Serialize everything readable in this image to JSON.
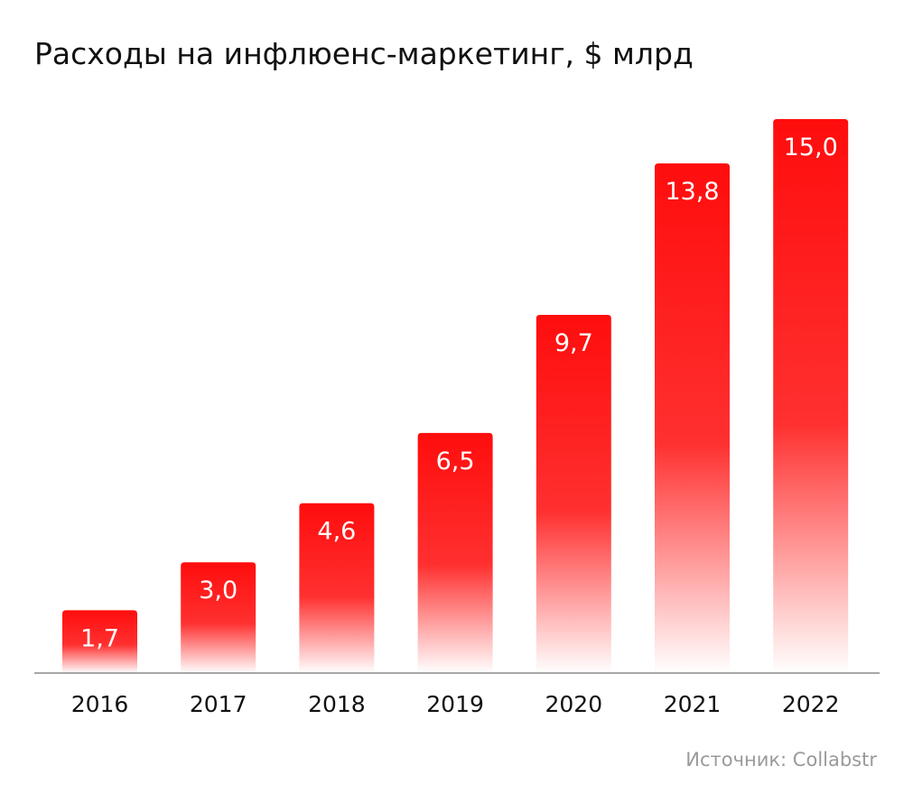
{
  "chart_data": {
    "type": "bar",
    "title": "Расходы на инфлюенс-маркетинг, $ млрд",
    "categories": [
      "2016",
      "2017",
      "2018",
      "2019",
      "2020",
      "2021",
      "2022"
    ],
    "values": [
      1.7,
      3.0,
      4.6,
      6.5,
      9.7,
      13.8,
      15.0
    ],
    "value_labels": [
      "1,7",
      "3,0",
      "4,6",
      "6,5",
      "9,7",
      "13,8",
      "15,0"
    ],
    "xlabel": "",
    "ylabel": "",
    "ylim": [
      0,
      15
    ],
    "grid": false,
    "legend": "none",
    "colors": {
      "bar_top": "#ff0d0d",
      "bar_bottom": "#ffffff",
      "baseline": "#8a8a8a",
      "value_label": "#ffffff",
      "tick_label": "#111111"
    }
  },
  "source": "Источник: Collabstr"
}
